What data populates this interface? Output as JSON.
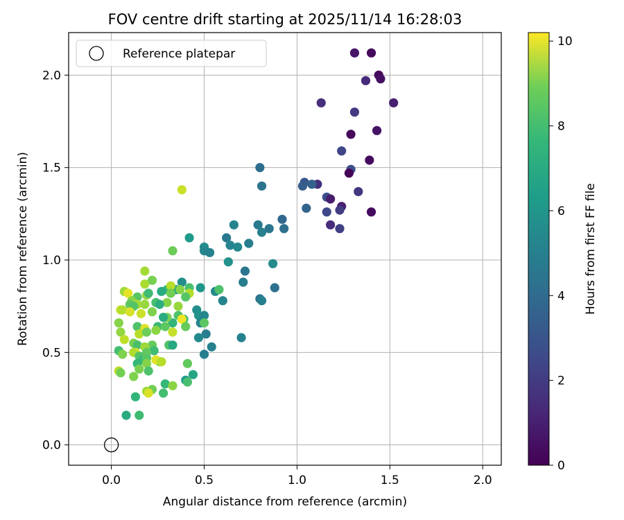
{
  "chart_data": {
    "type": "scatter",
    "title": "FOV centre drift starting at 2025/11/14 16:28:03",
    "xlabel": "Angular distance from reference (arcmin)",
    "ylabel": "Rotation from reference (arcmin)",
    "xlim": [
      -0.23,
      2.1
    ],
    "ylim": [
      -0.11,
      2.23
    ],
    "x_ticks": [
      0.0,
      0.5,
      1.0,
      1.5,
      2.0
    ],
    "x_tick_labels": [
      "0.0",
      "0.5",
      "1.0",
      "1.5",
      "2.0"
    ],
    "y_ticks": [
      0.0,
      0.5,
      1.0,
      1.5,
      2.0
    ],
    "y_tick_labels": [
      "0.0",
      "0.5",
      "1.0",
      "1.5",
      "2.0"
    ],
    "grid": true,
    "legend": {
      "position": "upper-left",
      "entries": [
        "Reference platepar"
      ]
    },
    "reference_point": {
      "x": 0.0,
      "y": 0.0,
      "label": "Reference platepar",
      "marker": "open-circle"
    },
    "colorbar": {
      "label": "Hours from first FF file",
      "colormap": "viridis",
      "range": [
        0,
        10.2
      ],
      "ticks": [
        0,
        2,
        4,
        6,
        8,
        10
      ],
      "tick_labels": [
        "0",
        "2",
        "4",
        "6",
        "8",
        "10"
      ]
    },
    "series": [
      {
        "name": "FOV centre drift",
        "points": [
          {
            "x": 1.31,
            "y": 2.12,
            "h": 0.6
          },
          {
            "x": 1.4,
            "y": 2.12,
            "h": 0.3
          },
          {
            "x": 1.44,
            "y": 2.0,
            "h": 0.2
          },
          {
            "x": 1.45,
            "y": 1.98,
            "h": 0.4
          },
          {
            "x": 1.37,
            "y": 1.97,
            "h": 1.2
          },
          {
            "x": 1.13,
            "y": 1.85,
            "h": 1.4
          },
          {
            "x": 1.52,
            "y": 1.85,
            "h": 0.9
          },
          {
            "x": 1.31,
            "y": 1.8,
            "h": 1.7
          },
          {
            "x": 1.43,
            "y": 1.7,
            "h": 0.5
          },
          {
            "x": 1.29,
            "y": 1.68,
            "h": 0.2
          },
          {
            "x": 1.24,
            "y": 1.59,
            "h": 2.1
          },
          {
            "x": 1.39,
            "y": 1.54,
            "h": 0.3
          },
          {
            "x": 1.29,
            "y": 1.49,
            "h": 2.4
          },
          {
            "x": 1.28,
            "y": 1.47,
            "h": 0.1
          },
          {
            "x": 1.33,
            "y": 1.37,
            "h": 1.6
          },
          {
            "x": 1.16,
            "y": 1.34,
            "h": 2.5
          },
          {
            "x": 1.18,
            "y": 1.33,
            "h": 0.8
          },
          {
            "x": 1.24,
            "y": 1.29,
            "h": 0.9
          },
          {
            "x": 1.23,
            "y": 1.27,
            "h": 1.8
          },
          {
            "x": 1.16,
            "y": 1.26,
            "h": 2.2
          },
          {
            "x": 1.4,
            "y": 1.26,
            "h": 0.3
          },
          {
            "x": 1.18,
            "y": 1.19,
            "h": 1.3
          },
          {
            "x": 1.23,
            "y": 1.17,
            "h": 1.9
          },
          {
            "x": 1.11,
            "y": 1.41,
            "h": 1.4
          },
          {
            "x": 1.04,
            "y": 1.42,
            "h": 2.8
          },
          {
            "x": 1.03,
            "y": 1.4,
            "h": 3.0
          },
          {
            "x": 1.08,
            "y": 1.41,
            "h": 3.2
          },
          {
            "x": 1.05,
            "y": 1.28,
            "h": 3.3
          },
          {
            "x": 0.8,
            "y": 1.5,
            "h": 3.6
          },
          {
            "x": 0.81,
            "y": 1.4,
            "h": 3.9
          },
          {
            "x": 0.92,
            "y": 1.22,
            "h": 3.4
          },
          {
            "x": 0.93,
            "y": 1.17,
            "h": 3.7
          },
          {
            "x": 0.85,
            "y": 1.17,
            "h": 4.0
          },
          {
            "x": 0.79,
            "y": 1.19,
            "h": 4.2
          },
          {
            "x": 0.81,
            "y": 1.15,
            "h": 4.4
          },
          {
            "x": 0.66,
            "y": 1.19,
            "h": 4.6
          },
          {
            "x": 0.62,
            "y": 1.12,
            "h": 4.1
          },
          {
            "x": 0.74,
            "y": 1.09,
            "h": 4.3
          },
          {
            "x": 0.64,
            "y": 1.08,
            "h": 4.6
          },
          {
            "x": 0.68,
            "y": 1.07,
            "h": 4.8
          },
          {
            "x": 0.5,
            "y": 1.07,
            "h": 5.0
          },
          {
            "x": 0.5,
            "y": 1.05,
            "h": 4.7
          },
          {
            "x": 0.53,
            "y": 1.04,
            "h": 4.5
          },
          {
            "x": 0.63,
            "y": 0.99,
            "h": 5.2
          },
          {
            "x": 0.87,
            "y": 0.98,
            "h": 4.9
          },
          {
            "x": 0.72,
            "y": 0.94,
            "h": 4.0
          },
          {
            "x": 0.71,
            "y": 0.88,
            "h": 4.3
          },
          {
            "x": 0.88,
            "y": 0.85,
            "h": 3.8
          },
          {
            "x": 0.8,
            "y": 0.79,
            "h": 3.9
          },
          {
            "x": 0.81,
            "y": 0.78,
            "h": 4.4
          },
          {
            "x": 0.6,
            "y": 0.78,
            "h": 4.6
          },
          {
            "x": 0.56,
            "y": 0.83,
            "h": 4.8
          },
          {
            "x": 0.7,
            "y": 0.58,
            "h": 4.5
          },
          {
            "x": 0.42,
            "y": 1.12,
            "h": 5.5
          },
          {
            "x": 0.33,
            "y": 1.05,
            "h": 7.9
          },
          {
            "x": 0.38,
            "y": 1.38,
            "h": 9.4
          },
          {
            "x": 0.48,
            "y": 0.85,
            "h": 5.4
          },
          {
            "x": 0.46,
            "y": 0.73,
            "h": 5.0
          },
          {
            "x": 0.47,
            "y": 0.7,
            "h": 5.3
          },
          {
            "x": 0.5,
            "y": 0.7,
            "h": 4.7
          },
          {
            "x": 0.48,
            "y": 0.66,
            "h": 4.6
          },
          {
            "x": 0.5,
            "y": 0.66,
            "h": 7.6
          },
          {
            "x": 0.51,
            "y": 0.6,
            "h": 4.3
          },
          {
            "x": 0.47,
            "y": 0.58,
            "h": 4.8
          },
          {
            "x": 0.54,
            "y": 0.53,
            "h": 4.5
          },
          {
            "x": 0.5,
            "y": 0.49,
            "h": 4.4
          },
          {
            "x": 0.58,
            "y": 0.84,
            "h": 7.3
          },
          {
            "x": 0.38,
            "y": 0.88,
            "h": 5.0
          },
          {
            "x": 0.35,
            "y": 0.84,
            "h": 5.7
          },
          {
            "x": 0.3,
            "y": 0.84,
            "h": 6.8
          },
          {
            "x": 0.27,
            "y": 0.83,
            "h": 6.2
          },
          {
            "x": 0.32,
            "y": 0.86,
            "h": 9.1
          },
          {
            "x": 0.37,
            "y": 0.84,
            "h": 8.3
          },
          {
            "x": 0.42,
            "y": 0.85,
            "h": 7.2
          },
          {
            "x": 0.42,
            "y": 0.82,
            "h": 9.0
          },
          {
            "x": 0.4,
            "y": 0.8,
            "h": 7.5
          },
          {
            "x": 0.32,
            "y": 0.82,
            "h": 8.0
          },
          {
            "x": 0.3,
            "y": 0.77,
            "h": 8.3
          },
          {
            "x": 0.24,
            "y": 0.77,
            "h": 7.2
          },
          {
            "x": 0.26,
            "y": 0.76,
            "h": 6.4
          },
          {
            "x": 0.36,
            "y": 0.75,
            "h": 8.6
          },
          {
            "x": 0.39,
            "y": 0.68,
            "h": 6.9
          },
          {
            "x": 0.36,
            "y": 0.7,
            "h": 7.3
          },
          {
            "x": 0.33,
            "y": 0.66,
            "h": 6.7
          },
          {
            "x": 0.38,
            "y": 0.68,
            "h": 10.0
          },
          {
            "x": 0.4,
            "y": 0.64,
            "h": 7.8
          },
          {
            "x": 0.3,
            "y": 0.69,
            "h": 8.1
          },
          {
            "x": 0.28,
            "y": 0.69,
            "h": 6.3
          },
          {
            "x": 0.25,
            "y": 0.64,
            "h": 6.9
          },
          {
            "x": 0.29,
            "y": 0.64,
            "h": 7.6
          },
          {
            "x": 0.24,
            "y": 0.62,
            "h": 8.4
          },
          {
            "x": 0.33,
            "y": 0.61,
            "h": 9.3
          },
          {
            "x": 0.31,
            "y": 0.54,
            "h": 7.4
          },
          {
            "x": 0.33,
            "y": 0.54,
            "h": 6.1
          },
          {
            "x": 0.22,
            "y": 0.54,
            "h": 7.8
          },
          {
            "x": 0.23,
            "y": 0.51,
            "h": 7.0
          },
          {
            "x": 0.26,
            "y": 0.45,
            "h": 8.1
          },
          {
            "x": 0.24,
            "y": 0.46,
            "h": 9.7
          },
          {
            "x": 0.27,
            "y": 0.45,
            "h": 9.1
          },
          {
            "x": 0.41,
            "y": 0.44,
            "h": 7.7
          },
          {
            "x": 0.44,
            "y": 0.38,
            "h": 6.0
          },
          {
            "x": 0.4,
            "y": 0.35,
            "h": 5.6
          },
          {
            "x": 0.41,
            "y": 0.34,
            "h": 7.2
          },
          {
            "x": 0.29,
            "y": 0.33,
            "h": 6.8
          },
          {
            "x": 0.33,
            "y": 0.32,
            "h": 8.4
          },
          {
            "x": 0.28,
            "y": 0.28,
            "h": 7.1
          },
          {
            "x": 0.22,
            "y": 0.3,
            "h": 8.0
          },
          {
            "x": 0.19,
            "y": 0.29,
            "h": 8.7
          },
          {
            "x": 0.2,
            "y": 0.28,
            "h": 9.6
          },
          {
            "x": 0.13,
            "y": 0.26,
            "h": 6.7
          },
          {
            "x": 0.08,
            "y": 0.16,
            "h": 6.2
          },
          {
            "x": 0.15,
            "y": 0.16,
            "h": 7.0
          },
          {
            "x": 0.07,
            "y": 0.83,
            "h": 8.7
          },
          {
            "x": 0.09,
            "y": 0.82,
            "h": 9.8
          },
          {
            "x": 0.14,
            "y": 0.8,
            "h": 7.5
          },
          {
            "x": 0.19,
            "y": 0.81,
            "h": 8.5
          },
          {
            "x": 0.2,
            "y": 0.82,
            "h": 7.0
          },
          {
            "x": 0.18,
            "y": 0.87,
            "h": 8.9
          },
          {
            "x": 0.18,
            "y": 0.94,
            "h": 8.8
          },
          {
            "x": 0.22,
            "y": 0.89,
            "h": 8.1
          },
          {
            "x": 0.11,
            "y": 0.78,
            "h": 8.4
          },
          {
            "x": 0.1,
            "y": 0.76,
            "h": 7.6
          },
          {
            "x": 0.14,
            "y": 0.76,
            "h": 8.8
          },
          {
            "x": 0.12,
            "y": 0.75,
            "h": 7.4
          },
          {
            "x": 0.18,
            "y": 0.76,
            "h": 8.6
          },
          {
            "x": 0.05,
            "y": 0.73,
            "h": 9.3
          },
          {
            "x": 0.06,
            "y": 0.73,
            "h": 9.0
          },
          {
            "x": 0.1,
            "y": 0.72,
            "h": 9.6
          },
          {
            "x": 0.16,
            "y": 0.71,
            "h": 9.4
          },
          {
            "x": 0.22,
            "y": 0.72,
            "h": 8.2
          },
          {
            "x": 0.04,
            "y": 0.66,
            "h": 8.3
          },
          {
            "x": 0.14,
            "y": 0.64,
            "h": 7.3
          },
          {
            "x": 0.18,
            "y": 0.63,
            "h": 9.7
          },
          {
            "x": 0.15,
            "y": 0.6,
            "h": 9.1
          },
          {
            "x": 0.19,
            "y": 0.61,
            "h": 7.9
          },
          {
            "x": 0.05,
            "y": 0.61,
            "h": 8.5
          },
          {
            "x": 0.07,
            "y": 0.57,
            "h": 9.2
          },
          {
            "x": 0.12,
            "y": 0.55,
            "h": 8.1
          },
          {
            "x": 0.14,
            "y": 0.54,
            "h": 7.2
          },
          {
            "x": 0.18,
            "y": 0.53,
            "h": 8.7
          },
          {
            "x": 0.13,
            "y": 0.5,
            "h": 10.0
          },
          {
            "x": 0.12,
            "y": 0.5,
            "h": 9.0
          },
          {
            "x": 0.19,
            "y": 0.5,
            "h": 7.7
          },
          {
            "x": 0.04,
            "y": 0.51,
            "h": 7.1
          },
          {
            "x": 0.06,
            "y": 0.49,
            "h": 8.2
          },
          {
            "x": 0.15,
            "y": 0.48,
            "h": 7.4
          },
          {
            "x": 0.17,
            "y": 0.46,
            "h": 6.9
          },
          {
            "x": 0.19,
            "y": 0.47,
            "h": 7.5
          },
          {
            "x": 0.19,
            "y": 0.44,
            "h": 8.3
          },
          {
            "x": 0.14,
            "y": 0.44,
            "h": 6.8
          },
          {
            "x": 0.15,
            "y": 0.41,
            "h": 8.1
          },
          {
            "x": 0.2,
            "y": 0.4,
            "h": 7.3
          },
          {
            "x": 0.04,
            "y": 0.4,
            "h": 9.1
          },
          {
            "x": 0.05,
            "y": 0.39,
            "h": 8.0
          },
          {
            "x": 0.12,
            "y": 0.37,
            "h": 8.2
          }
        ]
      }
    ]
  }
}
